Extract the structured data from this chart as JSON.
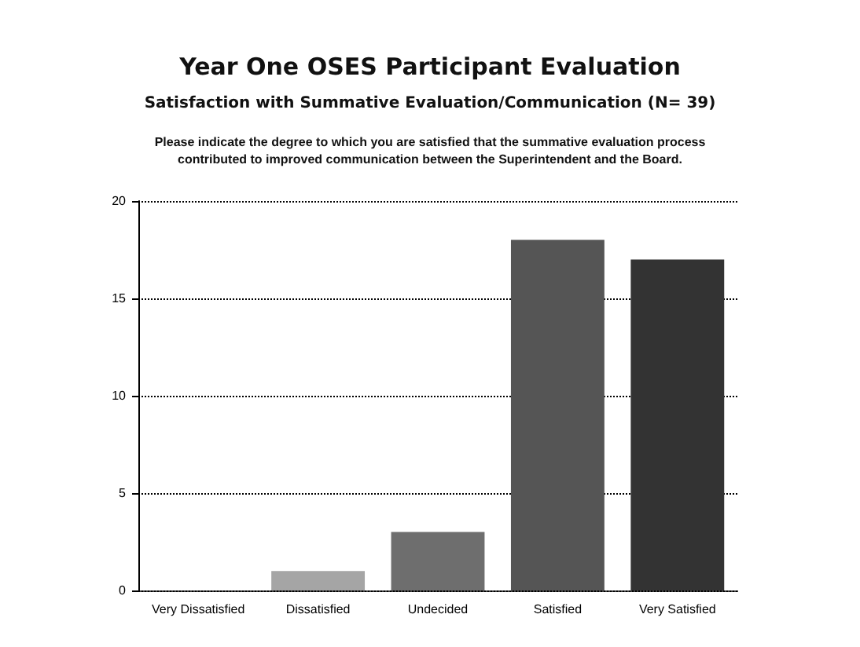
{
  "chart_data": {
    "type": "bar",
    "title": "Year One OSES Participant Evaluation",
    "subtitle": "Satisfaction with Summative Evaluation/Communication (N= 39)",
    "annotations": [
      "Please indicate the degree to which you are satisfied that the summative evaluation process\ncontributed to improved communication between the Superintendent and the Board."
    ],
    "categories": [
      "Very Dissatisfied",
      "Dissatisfied",
      "Undecided",
      "Satisfied",
      "Very Satisfied"
    ],
    "values": [
      0,
      1,
      3,
      18,
      17
    ],
    "colors": [
      "#8a8a8a",
      "#a5a5a5",
      "#6e6e6e",
      "#555555",
      "#333333"
    ],
    "ylim": [
      0,
      20
    ],
    "yticks": [
      0,
      5,
      10,
      15,
      20
    ],
    "grid": "y"
  }
}
